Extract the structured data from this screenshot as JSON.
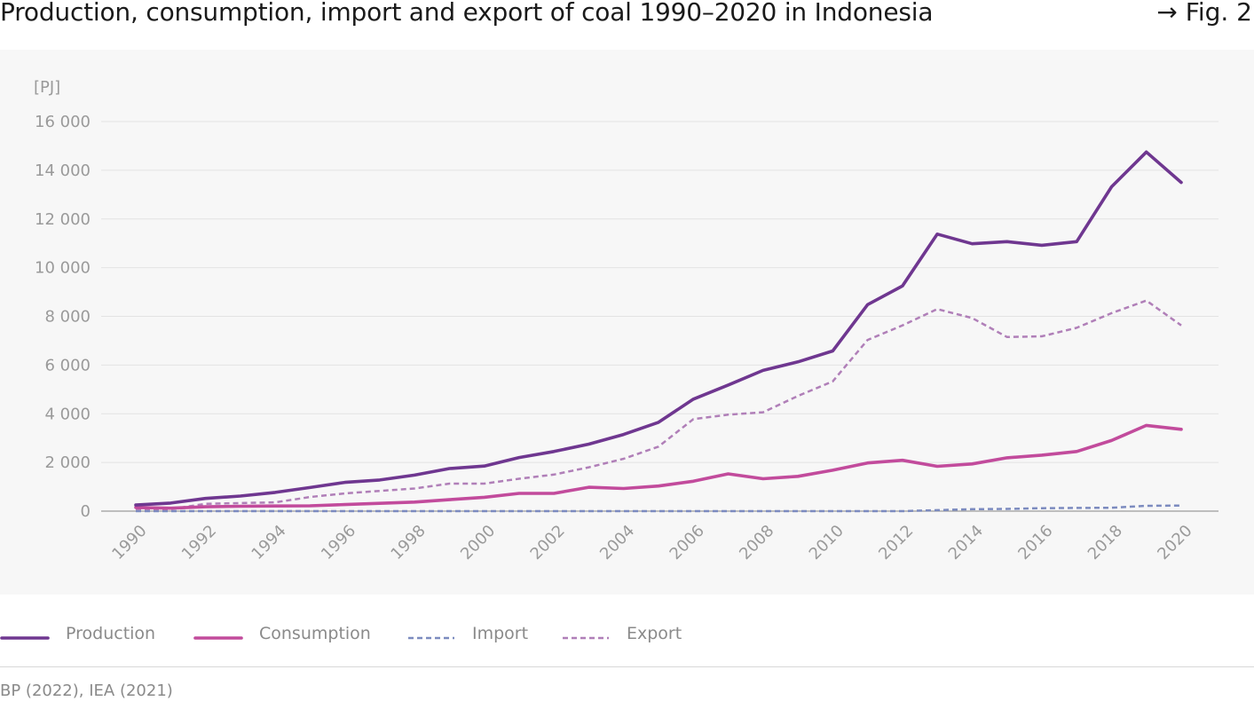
{
  "header": {
    "title": "Production, consumption, import and export of coal 1990–2020 in Indonesia",
    "figure_ref": "→ Fig. 2"
  },
  "footer": {
    "source": "BP (2022), IEA (2021)"
  },
  "chart_data": {
    "type": "line",
    "title": "Production, consumption, import and export of coal 1990–2020 in Indonesia",
    "ylabel": "[PJ]",
    "xlabel": "",
    "ylim": [
      0,
      16000
    ],
    "xlim": [
      1990,
      2020
    ],
    "grid": true,
    "legend_position": "bottom",
    "x": [
      1990,
      1991,
      1992,
      1993,
      1994,
      1995,
      1996,
      1997,
      1998,
      1999,
      2000,
      2001,
      2002,
      2003,
      2004,
      2005,
      2006,
      2007,
      2008,
      2009,
      2010,
      2011,
      2012,
      2013,
      2014,
      2015,
      2016,
      2017,
      2018,
      2019,
      2020
    ],
    "x_ticks": [
      "1990",
      "1992",
      "1994",
      "1996",
      "1998",
      "2000",
      "2002",
      "2004",
      "2006",
      "2008",
      "2010",
      "2012",
      "2014",
      "2016",
      "2018",
      "2020"
    ],
    "y_ticks": [
      "0",
      "2 000",
      "4 000",
      "6 000",
      "8 000",
      "10 000",
      "12 000",
      "14 000",
      "16 000"
    ],
    "y_tick_values": [
      0,
      2000,
      4000,
      6000,
      8000,
      10000,
      12000,
      14000,
      16000
    ],
    "series": [
      {
        "name": "Production",
        "color": "#6f3790",
        "dashed": false,
        "values": [
          250,
          330,
          520,
          620,
          770,
          970,
          1180,
          1280,
          1480,
          1750,
          1850,
          2200,
          2450,
          2750,
          3150,
          3650,
          4600,
          5180,
          5780,
          6130,
          6580,
          8480,
          9250,
          11380,
          10980,
          11070,
          10920,
          11070,
          13320,
          14750,
          13500
        ]
      },
      {
        "name": "Consumption",
        "color": "#c24b9c",
        "dashed": false,
        "values": [
          150,
          120,
          180,
          200,
          210,
          220,
          270,
          320,
          370,
          470,
          570,
          730,
          730,
          980,
          930,
          1030,
          1230,
          1530,
          1330,
          1430,
          1680,
          1980,
          2090,
          1840,
          1940,
          2190,
          2300,
          2450,
          2900,
          3520,
          3360
        ]
      },
      {
        "name": "Import",
        "color": "#7c8bbf",
        "dashed": true,
        "values": [
          0,
          0,
          0,
          0,
          0,
          0,
          0,
          0,
          0,
          0,
          0,
          0,
          0,
          0,
          0,
          0,
          0,
          0,
          0,
          0,
          0,
          0,
          0,
          40,
          80,
          90,
          120,
          130,
          140,
          220,
          230
        ]
      },
      {
        "name": "Export",
        "color": "#b07fb8",
        "dashed": true,
        "values": [
          80,
          80,
          300,
          330,
          360,
          580,
          730,
          830,
          930,
          1130,
          1130,
          1330,
          1500,
          1800,
          2150,
          2650,
          3780,
          3960,
          4060,
          4730,
          5330,
          7030,
          7630,
          8300,
          7930,
          7150,
          7180,
          7530,
          8130,
          8650,
          7630
        ]
      }
    ]
  }
}
